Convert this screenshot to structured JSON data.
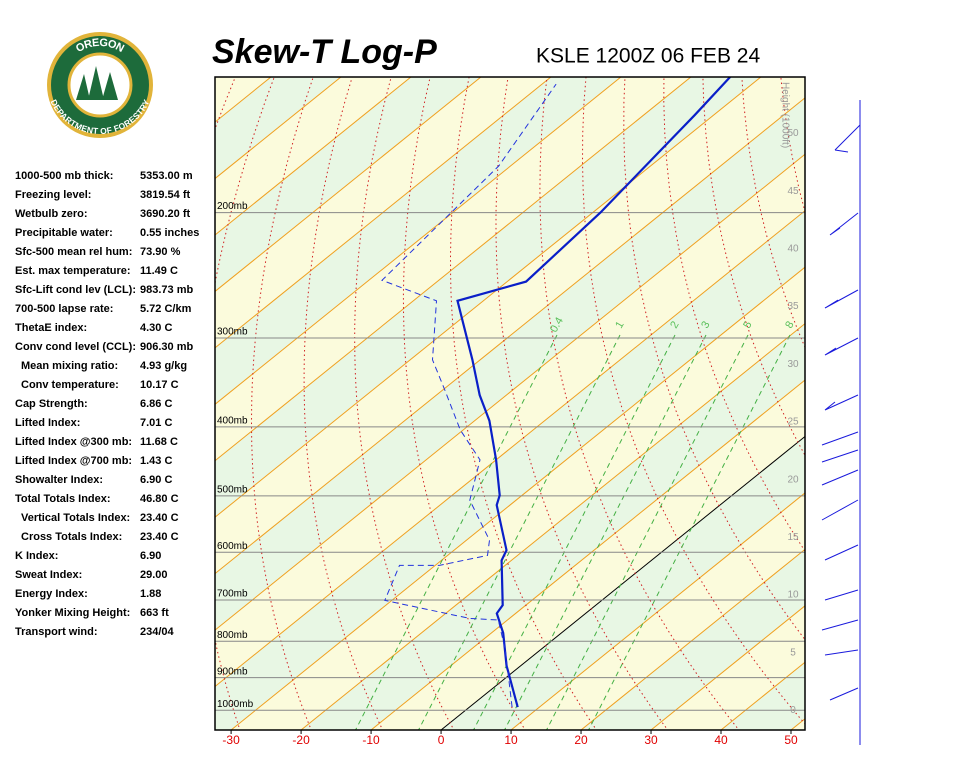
{
  "header": {
    "title": "Skew-T Log-P",
    "station": "KSLE 1200Z 06 FEB 24"
  },
  "logo": {
    "top": "OREGON",
    "bottom": "DEPARTMENT OF FORESTRY"
  },
  "indices": [
    [
      "1000-500 mb thick:",
      "5353.00 m"
    ],
    [
      "Freezing level:",
      "3819.54 ft"
    ],
    [
      "Wetbulb zero:",
      "3690.20 ft"
    ],
    [
      "Precipitable water:",
      "0.55 inches"
    ],
    [
      "Sfc-500 mean rel hum:",
      "73.90 %"
    ],
    [
      "Est. max temperature:",
      "11.49 C"
    ],
    [
      "Sfc-Lift cond lev (LCL):",
      "983.73 mb"
    ],
    [
      "700-500 lapse rate:",
      "5.72 C/km"
    ],
    [
      "ThetaE index:",
      "4.30 C"
    ],
    [
      "Conv cond level (CCL):",
      "906.30 mb"
    ],
    [
      "Mean mixing ratio:",
      "4.93 g/kg"
    ],
    [
      "Conv temperature:",
      "10.17 C"
    ],
    [
      "Cap Strength:",
      "6.86 C"
    ],
    [
      "Lifted Index:",
      "7.01 C"
    ],
    [
      "Lifted Index @300 mb:",
      "11.68 C"
    ],
    [
      "Lifted Index @700 mb:",
      "1.43 C"
    ],
    [
      "Showalter Index:",
      "6.90 C"
    ],
    [
      "Total Totals Index:",
      "46.80 C"
    ],
    [
      "Vertical Totals Index:",
      "23.40 C"
    ],
    [
      "Cross Totals Index:",
      "23.40 C"
    ],
    [
      "K Index:",
      "6.90"
    ],
    [
      "Sweat Index:",
      "29.00"
    ],
    [
      "Energy Index:",
      "1.88"
    ],
    [
      "Yonker Mixing Height:",
      "663 ft"
    ],
    [
      "Transport wind:",
      "234/04"
    ]
  ],
  "chart_data": {
    "type": "skewt",
    "xlim": [
      -32.3,
      52.0
    ],
    "xticks": [
      -30,
      -20,
      -10,
      0,
      10,
      20,
      30,
      40,
      50
    ],
    "ylim": [
      1066,
      129
    ],
    "ylog": true,
    "yticks": [
      {
        "value": 200,
        "label": "200mb"
      },
      {
        "value": 300,
        "label": "300mb"
      },
      {
        "value": 400,
        "label": "400mb"
      },
      {
        "value": 500,
        "label": "500mb"
      },
      {
        "value": 600,
        "label": "600mb"
      },
      {
        "value": 700,
        "label": "700mb"
      },
      {
        "value": 800,
        "label": "800mb"
      },
      {
        "value": 900,
        "label": "900mb"
      },
      {
        "value": 1000,
        "label": "1000mb"
      }
    ],
    "y2label": "Height (1000ft)",
    "y2lim": [
      -1.7,
      54.9
    ],
    "y2ticks": [
      0,
      5,
      10,
      15,
      20,
      25,
      30,
      35,
      40,
      45,
      50
    ],
    "mixing_ratio_labels": [
      0.4,
      1,
      2,
      3,
      5,
      8
    ],
    "series": [
      {
        "color": "#0a1fc8",
        "dash": false,
        "pressure": [
          990,
          865,
          779,
          731,
          712,
          616,
          596,
          515,
          499,
          445,
          392,
          361,
          322,
          266,
          250,
          200,
          146,
          129
        ],
        "values": [
          6.9,
          -2.1,
          -8.3,
          -12.7,
          -13.3,
          -21.4,
          -22.5,
          -31.9,
          -33.2,
          -40.0,
          -47.9,
          -53.8,
          -61.1,
          -73.7,
          -67.3,
          -68.9,
          -72.7,
          -74.4
        ]
      },
      {
        "color": "#2233dd",
        "dash": true,
        "pressure": [
          990,
          823,
          747,
          743,
          701,
          626,
          626,
          606,
          577,
          507,
          445,
          404,
          355,
          322,
          266,
          249,
          172,
          132
        ],
        "values": [
          6.1,
          -5.0,
          -11.3,
          -15.7,
          -31.0,
          -35.1,
          -29.4,
          -24.3,
          -26.7,
          -36.6,
          -42.3,
          -50.4,
          -59.7,
          -66.8,
          -76.7,
          -88.1,
          -91.7,
          -98.0
        ]
      }
    ]
  }
}
